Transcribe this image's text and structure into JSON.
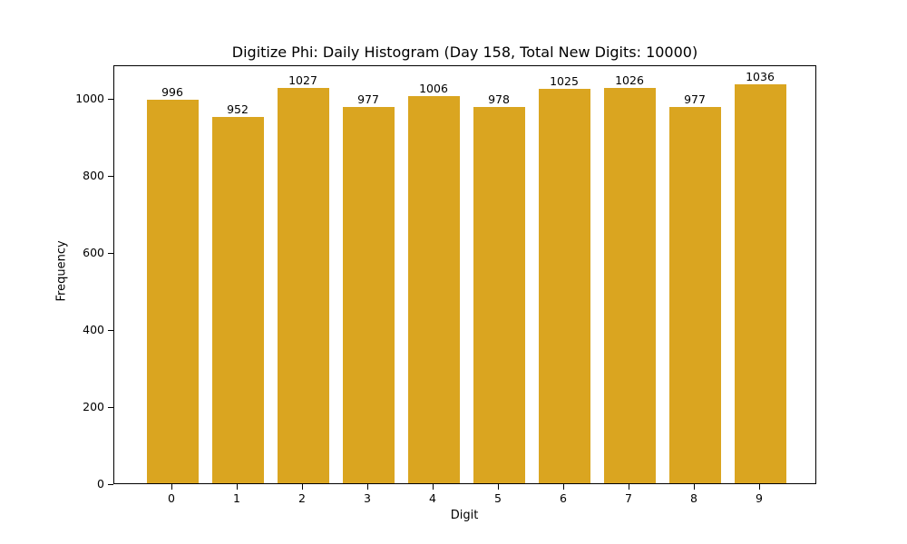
{
  "chart_data": {
    "type": "bar",
    "title": "Digitize Phi: Daily Histogram (Day 158, Total New Digits: 10000)",
    "xlabel": "Digit",
    "ylabel": "Frequency",
    "categories": [
      "0",
      "1",
      "2",
      "3",
      "4",
      "5",
      "6",
      "7",
      "8",
      "9"
    ],
    "values": [
      996,
      952,
      1027,
      977,
      1006,
      978,
      1025,
      1026,
      977,
      1036
    ],
    "yticks": [
      0,
      200,
      400,
      600,
      800,
      1000
    ],
    "ylim": [
      0,
      1088
    ],
    "bar_color": "#DAA520",
    "grid": false,
    "legend": null
  }
}
